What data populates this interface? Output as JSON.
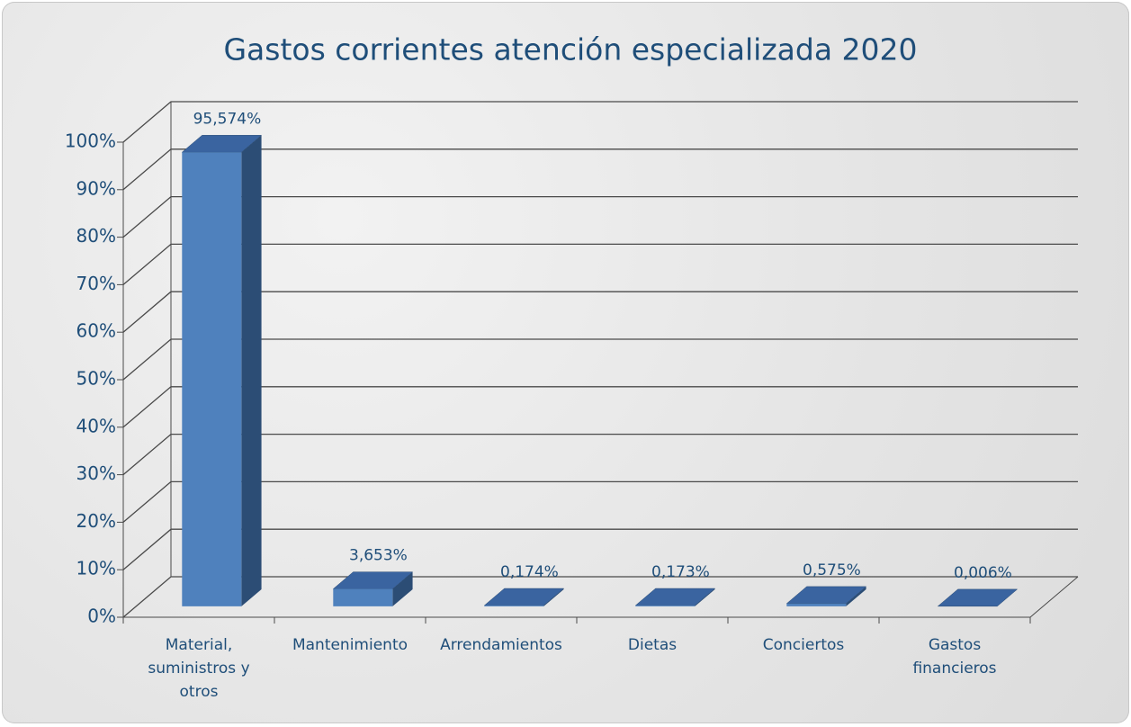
{
  "chart_data": {
    "type": "bar3d",
    "title": "Gastos corrientes atención especializada 2020",
    "categories": [
      "Material, suministros y otros",
      "Mantenimiento",
      "Arrendamientos",
      "Dietas",
      "Conciertos",
      "Gastos financieros"
    ],
    "values": [
      95.574,
      3.653,
      0.174,
      0.173,
      0.575,
      0.006
    ],
    "value_labels": [
      "95,574%",
      "3,653%",
      "0,174%",
      "0,173%",
      "0,575%",
      "0,006%"
    ],
    "color": "#4f81bd",
    "ylim": [
      0,
      100
    ],
    "yticks": [
      {
        "value": 0,
        "label": "0%"
      },
      {
        "value": 10,
        "label": "10%"
      },
      {
        "value": 20,
        "label": "20%"
      },
      {
        "value": 30,
        "label": "30%"
      },
      {
        "value": 40,
        "label": "40%"
      },
      {
        "value": 50,
        "label": "50%"
      },
      {
        "value": 60,
        "label": "60%"
      },
      {
        "value": 70,
        "label": "70%"
      },
      {
        "value": 80,
        "label": "80%"
      },
      {
        "value": 90,
        "label": "90%"
      },
      {
        "value": 100,
        "label": "100%"
      }
    ],
    "grid": true
  }
}
